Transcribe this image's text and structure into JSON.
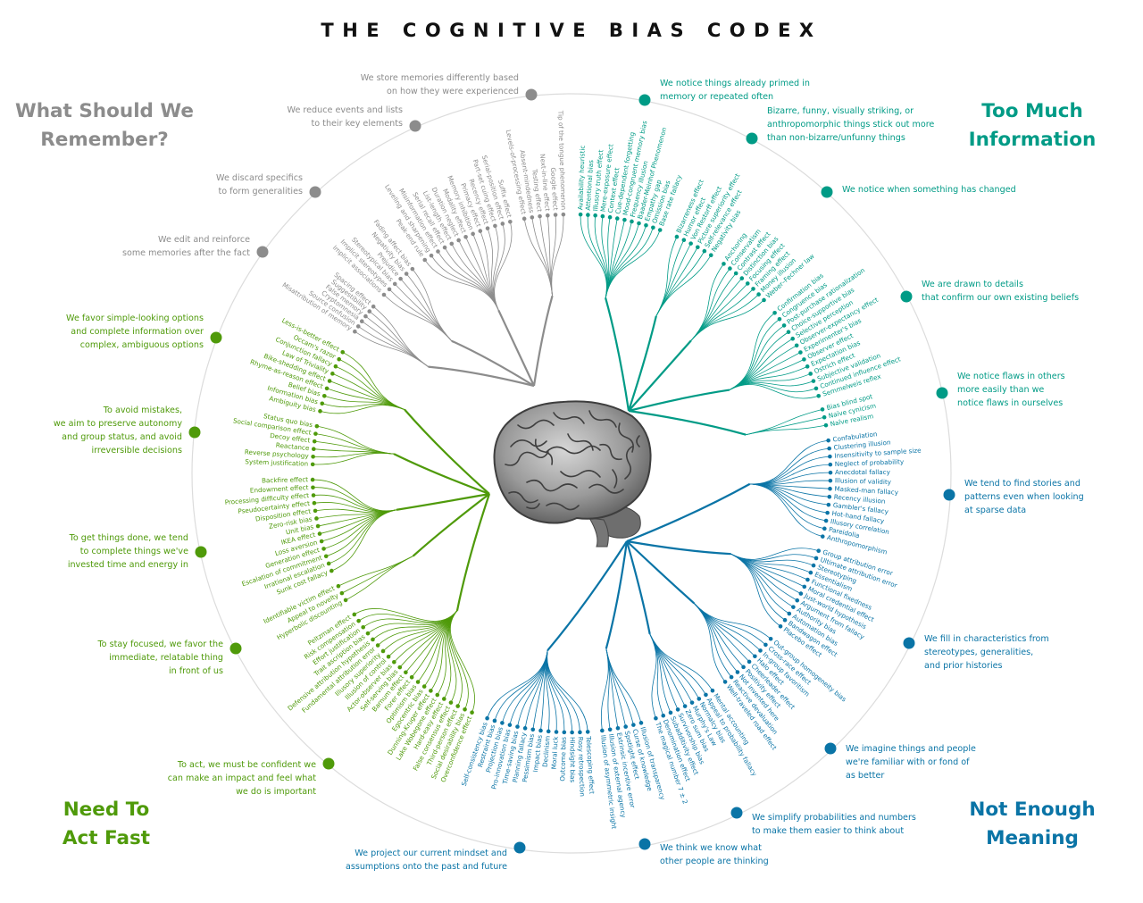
{
  "title": "THE COGNITIVE BIAS CODEX",
  "colors": {
    "gray": "#8c8c8c",
    "green": "#4f9a0a",
    "blue": "#0a74a6",
    "teal": "#009b86"
  },
  "quadrants": {
    "remember": {
      "line1": "What Should We",
      "line2": "Remember?",
      "color": "gray"
    },
    "information": {
      "line1": "Too Much",
      "line2": "Information",
      "color": "teal"
    },
    "act": {
      "line1": "Need To",
      "line2": "Act Fast",
      "color": "green"
    },
    "meaning": {
      "line1": "Not Enough",
      "line2": "Meaning",
      "color": "blue"
    }
  },
  "categories": [
    {
      "color": "gray",
      "text": "We store memories differently based\non how they were experienced",
      "biases": [
        "Levels-of-processing effect",
        "Absent-mindedness",
        "Testing effect",
        "Next-in-line effect",
        "Google effect",
        "Tip of the tongue phenomenon"
      ]
    },
    {
      "color": "gray",
      "text": "We reduce events and lists\nto their key elements",
      "biases": [
        "Peak-end rule",
        "Leveling and sharpening",
        "Misinformation effect",
        "Serial recall effect",
        "List-length effect",
        "Duration neglect",
        "Modality effect",
        "Memory inhibition",
        "Primacy effect",
        "Recency effect",
        "Part-set cuing effect",
        "Serial-position effect",
        "Suffix effect"
      ]
    },
    {
      "color": "gray",
      "text": "We discard specifics\nto form generalities",
      "biases": [
        "Implicit associations",
        "Implicit stereotypes",
        "Stereotypical bias",
        "Prejudice",
        "Negativity bias",
        "Fading affect bias"
      ]
    },
    {
      "color": "gray",
      "text": "We edit and reinforce\nsome memories after the fact",
      "biases": [
        "Misattribution of memory",
        "Source confusion",
        "Cryptomnesia",
        "False memory",
        "Suggestibility",
        "Spacing effect"
      ]
    },
    {
      "color": "green",
      "text": "We favor simple-looking options\nand complete information over\ncomplex, ambiguous options",
      "biases": [
        "Ambiguity bias",
        "Information bias",
        "Belief bias",
        "Rhyme-as-reason effect",
        "Bike-shedding effect",
        "Law of Triviality",
        "Conjunction fallacy",
        "Occam's razor",
        "Less-is-better effect"
      ]
    },
    {
      "color": "green",
      "text": "To avoid mistakes,\nwe aim to preserve autonomy\nand group status, and avoid\nirreversible decisions",
      "biases": [
        "System justification",
        "Reverse psychology",
        "Reactance",
        "Decoy effect",
        "Social comparison effect",
        "Status quo bias"
      ]
    },
    {
      "color": "green",
      "text": "To get things done, we tend\nto complete things we've\ninvested time and energy in",
      "biases": [
        "Sunk cost fallacy",
        "Irrational escalation",
        "Escalation of commitment",
        "Generation effect",
        "Loss aversion",
        "IKEA effect",
        "Unit bias",
        "Zero-risk bias",
        "Disposition effect",
        "Pseudocertainty effect",
        "Processing difficulty effect",
        "Endowment effect",
        "Backfire effect"
      ]
    },
    {
      "color": "green",
      "text": "To stay focused, we favor the\nimmediate, relatable thing\nin front of us",
      "biases": [
        "Hyperbolic discounting",
        "Appeal to novelty",
        "Identifiable victim effect"
      ]
    },
    {
      "color": "green",
      "text": "To act, we must be confident we\ncan make an impact and feel what\nwe do is important",
      "biases": [
        "Overconfidence effect",
        "Social desirability bias",
        "Third-person effect",
        "False consensus effect",
        "Hard-easy effect",
        "Lake Wobegone effect",
        "Dunning-Kruger effect",
        "Egocentric bias",
        "Optimism bias",
        "Forer effect",
        "Barnum effect",
        "Self-serving bias",
        "Actor-observer bias",
        "Illusion of control",
        "Illusory superiority",
        "Fundamental attribution error",
        "Defensive attribution hypothesis",
        "Trait ascription bias",
        "Effort justification",
        "Risk compensation",
        "Peltzman effect"
      ]
    },
    {
      "color": "blue",
      "text": "We project our current mindset and\nassumptions onto the past and future",
      "biases": [
        "Telescoping effect",
        "Rosy retrospection",
        "Hindsight bias",
        "Outcome bias",
        "Moral luck",
        "Declinism",
        "Impact bias",
        "Pessimism bias",
        "Planning fallacy",
        "Time-saving bias",
        "Pro-innovation bias",
        "Projection bias",
        "Restraint bias",
        "Self-consistency bias"
      ]
    },
    {
      "color": "blue",
      "text": "We think we know what\nother people are thinking",
      "biases": [
        "Illusion of transparency",
        "Curse of knowledge",
        "Spotlight effect",
        "Extrinsic incentive error",
        "Illusion of external agency",
        "Illusion of asymmetric insight"
      ]
    },
    {
      "color": "blue",
      "text": "We simplify probabilities and numbers\nto make them easier to think about",
      "biases": [
        "Mental accounting",
        "Appeal to probability fallacy",
        "Normalcy bias",
        "Murphy's Law",
        "Zero sum bias",
        "Survivorship bias",
        "Subadditivity effect",
        "Denomination effect",
        "The magical number 7 ± 2"
      ]
    },
    {
      "color": "blue",
      "text": "We imagine things and people\nwe're familiar with or fond of\nas better",
      "biases": [
        "Out-group homogeneity bias",
        "Cross-race effect",
        "In-group favoritism",
        "Halo effect",
        "Cheerleader effect",
        "Positivity effect",
        "Not invented here",
        "Reactive devaluation",
        "Well-traveled road effect"
      ]
    },
    {
      "color": "blue",
      "text": "We fill in characteristics from\nstereotypes, generalities,\nand prior histories",
      "biases": [
        "Group attribution error",
        "Ultimate attribution error",
        "Stereotyping",
        "Essentialism",
        "Functional fixedness",
        "Moral credential effect",
        "Just-world hypothesis",
        "Argument from fallacy",
        "Authority bias",
        "Automation bias",
        "Bandwagon effect",
        "Placebo effect"
      ]
    },
    {
      "color": "blue",
      "text": "We tend to find stories and\npatterns even when looking\nat sparse data",
      "biases": [
        "Confabulation",
        "Clustering illusion",
        "Insensitivity to sample size",
        "Neglect of probability",
        "Anecdotal fallacy",
        "Illusion of validity",
        "Masked-man fallacy",
        "Recency illusion",
        "Gambler's fallacy",
        "Hot-hand fallacy",
        "Illusory correlation",
        "Pareidolia",
        "Anthropomorphism"
      ]
    },
    {
      "color": "teal",
      "text": "We notice flaws in others\nmore easily than we\nnotice flaws in ourselves",
      "biases": [
        "Bias blind spot",
        "Naïve cynicism",
        "Naïve realism"
      ]
    },
    {
      "color": "teal",
      "text": "We are drawn to details\nthat confirm our own existing beliefs",
      "biases": [
        "Confirmation bias",
        "Congruence bias",
        "Post-purchase rationalization",
        "Choice-supportive bias",
        "Selective perception",
        "Observer-expectancy effect",
        "Experimenter's bias",
        "Observer effect",
        "Expectation bias",
        "Ostrich effect",
        "Subjective validation",
        "Continued influence effect",
        "Semmelweis reflex"
      ]
    },
    {
      "color": "teal",
      "text": "We notice when something has changed",
      "biases": [
        "Anchoring",
        "Conservatism",
        "Contrast effect",
        "Distinction bias",
        "Focusing effect",
        "Framing effect",
        "Money illusion",
        "Weber–Fechner law"
      ]
    },
    {
      "color": "teal",
      "text": "Bizarre, funny, visually striking, or\nanthropomorphic things stick out more\nthan non-bizarre/unfunny things",
      "biases": [
        "Bizarreness effect",
        "Humor effect",
        "Von Restorff effect",
        "Picture superiority effect",
        "Self-relevance effect",
        "Negativity bias"
      ]
    },
    {
      "color": "teal",
      "text": "We notice things already primed in\nmemory or repeated often",
      "biases": [
        "Availability heuristic",
        "Attentional bias",
        "Illusory truth effect",
        "Mere-exposure effect",
        "Context effect",
        "Cue-dependent forgetting",
        "Mood-congruent memory bias",
        "Frequency illusion",
        "Baader-Meinhof Phenomenon",
        "Empathy gap",
        "Omission bias",
        "Base rate fallacy"
      ]
    }
  ]
}
